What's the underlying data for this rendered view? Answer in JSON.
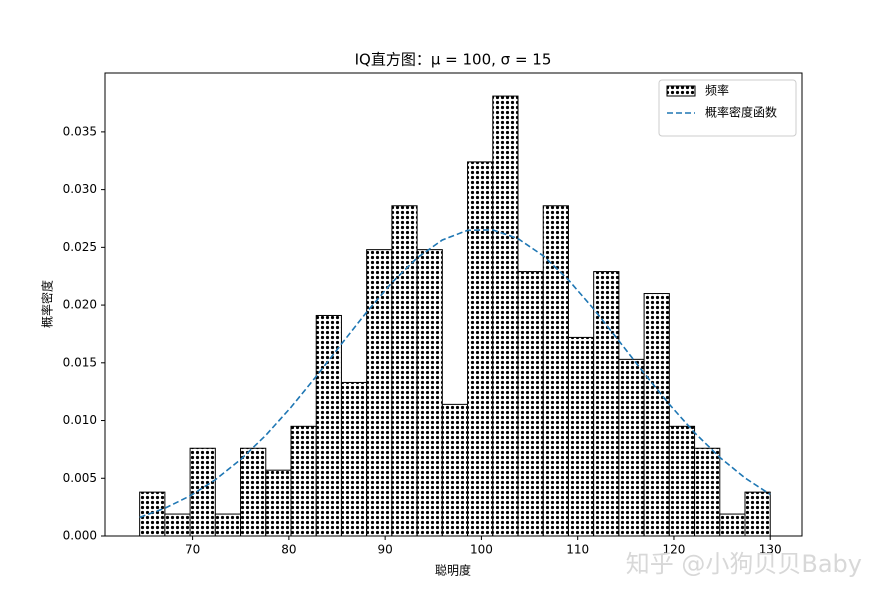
{
  "chart_data": {
    "type": "histogram",
    "title": "IQ直方图：μ = 100, σ = 15",
    "xlabel": "聪明度",
    "ylabel": "概率密度",
    "bins": [
      64.5,
      67.12,
      69.74,
      72.36,
      74.98,
      77.6,
      80.22,
      82.84,
      85.46,
      88.08,
      90.7,
      93.32,
      95.94,
      98.56,
      101.18,
      103.8,
      106.42,
      109.04,
      111.66,
      114.28,
      116.9,
      119.52,
      122.14,
      124.76,
      127.38,
      130
    ],
    "series": [
      {
        "name": "频率",
        "type": "histogram",
        "color": "#000000",
        "values": [
          0.0038,
          0.0019,
          0.0076,
          0.0019,
          0.0076,
          0.0057,
          0.0095,
          0.0191,
          0.0133,
          0.0248,
          0.0286,
          0.0248,
          0.0114,
          0.0324,
          0.0381,
          0.0229,
          0.0286,
          0.0172,
          0.0229,
          0.0153,
          0.021,
          0.0095,
          0.0076,
          0.0019,
          0.0038
        ]
      },
      {
        "name": "概率密度函数",
        "type": "line",
        "color": "#1f77b4",
        "x": [
          64.5,
          67.12,
          69.74,
          72.36,
          74.98,
          77.6,
          80.22,
          82.84,
          85.46,
          88.08,
          90.7,
          93.32,
          95.94,
          98.56,
          101.18,
          103.8,
          106.42,
          109.04,
          111.66,
          114.28,
          116.9,
          119.52,
          122.14,
          124.76,
          127.38,
          130
        ],
        "values": [
          0.001617,
          0.002408,
          0.003476,
          0.00487,
          0.006617,
          0.008721,
          0.011149,
          0.013825,
          0.016625,
          0.019394,
          0.021944,
          0.024085,
          0.025639,
          0.026474,
          0.026514,
          0.025755,
          0.024269,
          0.022178,
          0.019662,
          0.016904,
          0.014099,
          0.011404,
          0.00895,
          0.006811,
          0.005027,
          0.003599
        ]
      }
    ],
    "xlim": [
      60.9,
      133.3
    ],
    "xticks": [
      70,
      80,
      90,
      100,
      110,
      120,
      130
    ],
    "ylim": [
      0,
      0.0401
    ],
    "yticks": [
      {
        "value": 0,
        "label": "0.000"
      },
      {
        "value": 0.005,
        "label": "0.005"
      },
      {
        "value": 0.01,
        "label": "0.010"
      },
      {
        "value": 0.015,
        "label": "0.015"
      },
      {
        "value": 0.02,
        "label": "0.020"
      },
      {
        "value": 0.025,
        "label": "0.025"
      },
      {
        "value": 0.03,
        "label": "0.030"
      },
      {
        "value": 0.035,
        "label": "0.035"
      }
    ],
    "legend": "upper right",
    "watermark": "知乎 @小狗贝贝Baby"
  }
}
